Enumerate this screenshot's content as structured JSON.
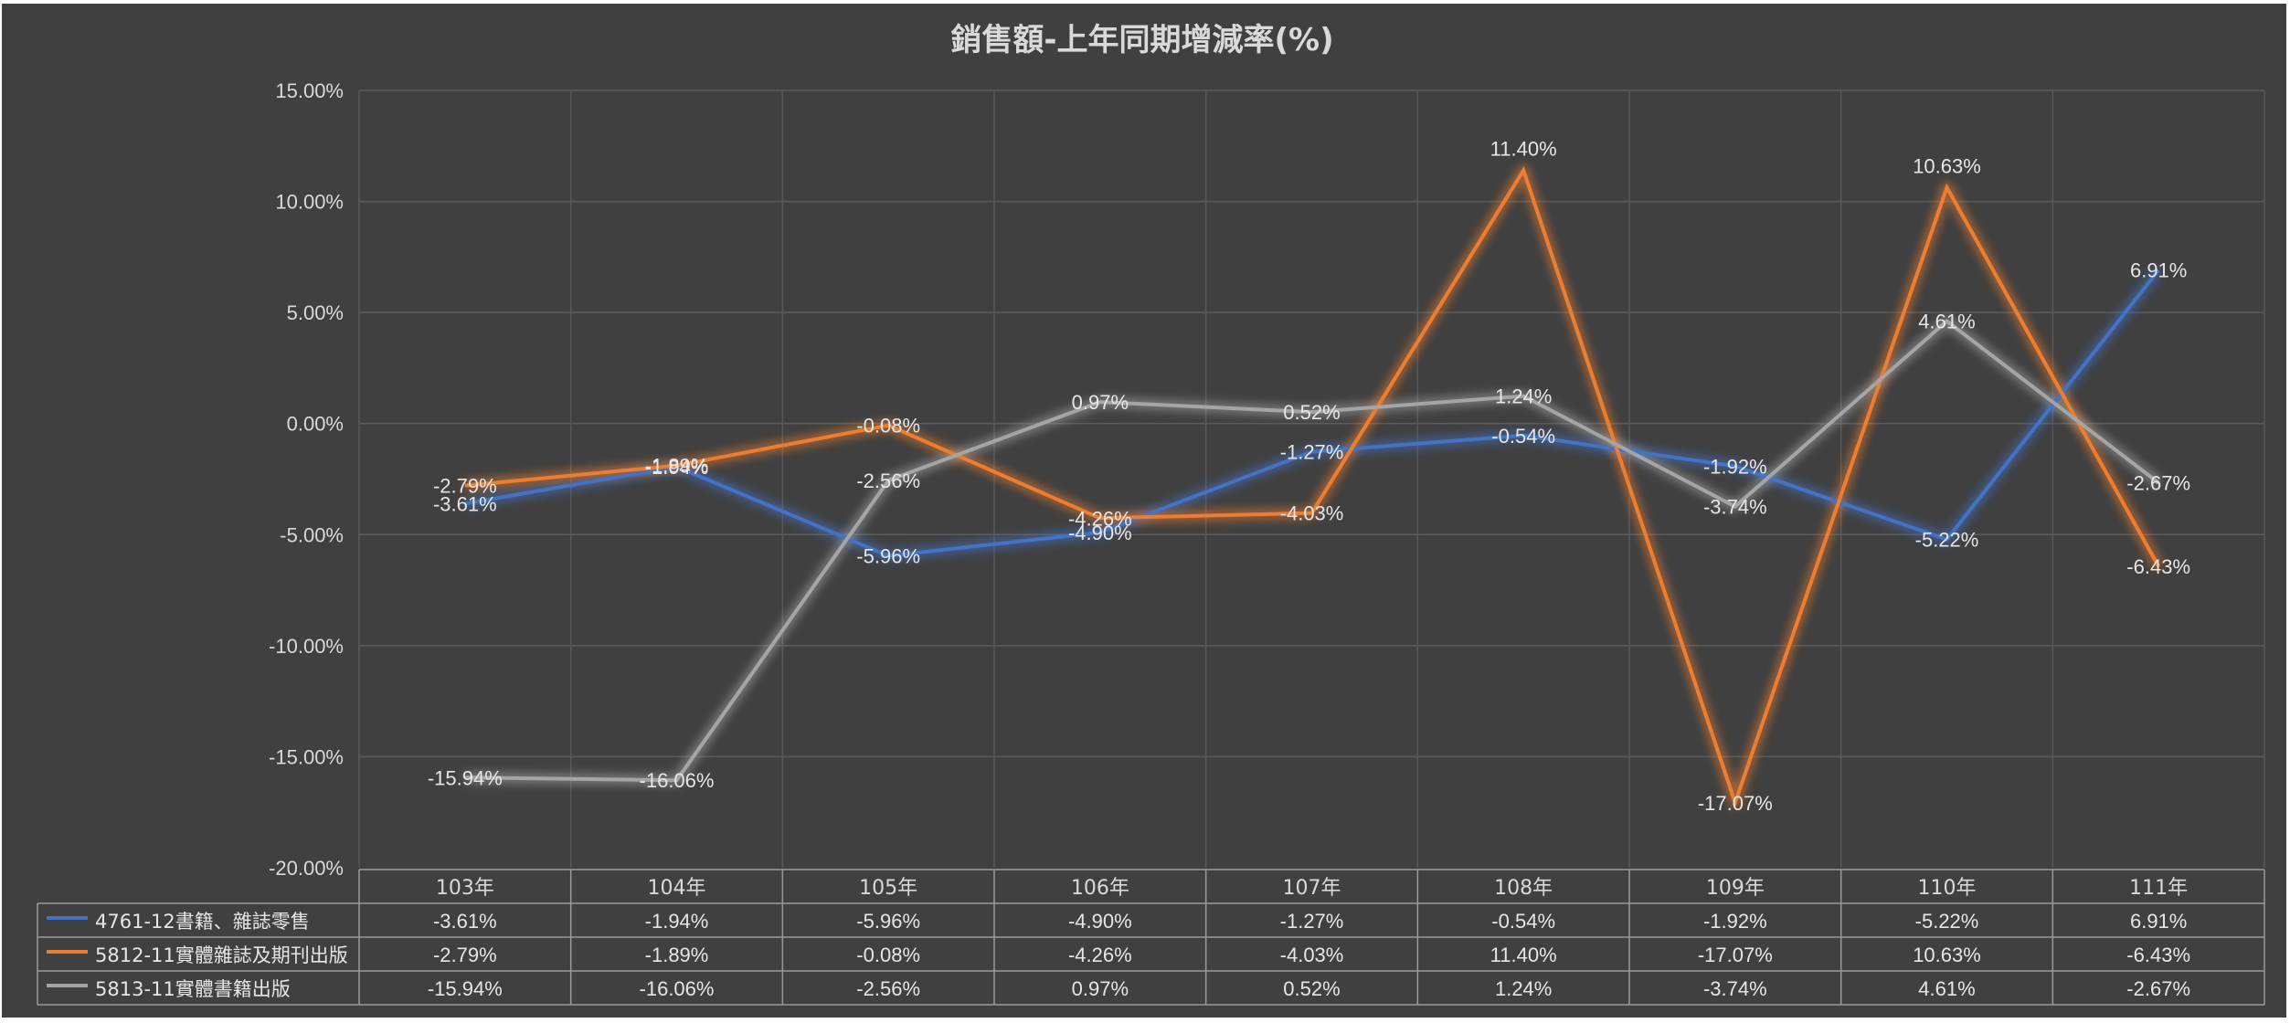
{
  "chart_data": {
    "type": "line",
    "title": "銷售額-上年同期增減率(%)",
    "categories": [
      "103年",
      "104年",
      "105年",
      "106年",
      "107年",
      "108年",
      "109年",
      "110年",
      "111年"
    ],
    "ylim": [
      -20,
      15
    ],
    "yticks": [
      "15.00%",
      "10.00%",
      "5.00%",
      "0.00%",
      "-5.00%",
      "-10.00%",
      "-15.00%",
      "-20.00%"
    ],
    "ytick_values": [
      15,
      10,
      5,
      0,
      -5,
      -10,
      -15,
      -20
    ],
    "grid": true,
    "legend": "data-table-bottom",
    "series": [
      {
        "name": "4761-12書籍、雜誌零售",
        "color": "#4472c4",
        "values": [
          -3.61,
          -1.94,
          -5.96,
          -4.9,
          -1.27,
          -0.54,
          -1.92,
          -5.22,
          6.91
        ],
        "labels": [
          "-3.61%",
          "-1.94%",
          "-5.96%",
          "-4.90%",
          "-1.27%",
          "-0.54%",
          "-1.92%",
          "-5.22%",
          "6.91%"
        ]
      },
      {
        "name": "5812-11實體雜誌及期刊出版",
        "color": "#ed7d31",
        "values": [
          -2.79,
          -1.89,
          -0.08,
          -4.26,
          -4.03,
          11.4,
          -17.07,
          10.63,
          -6.43
        ],
        "labels": [
          "-2.79%",
          "-1.89%",
          "-0.08%",
          "-4.26%",
          "-4.03%",
          "11.40%",
          "-17.07%",
          "10.63%",
          "-6.43%"
        ]
      },
      {
        "name": "5813-11實體書籍出版",
        "color": "#a5a5a5",
        "values": [
          -15.94,
          -16.06,
          -2.56,
          0.97,
          0.52,
          1.24,
          -3.74,
          4.61,
          -2.67
        ],
        "labels": [
          "-15.94%",
          "-16.06%",
          "-2.56%",
          "0.97%",
          "0.52%",
          "1.24%",
          "-3.74%",
          "4.61%",
          "-2.67%"
        ]
      }
    ]
  }
}
